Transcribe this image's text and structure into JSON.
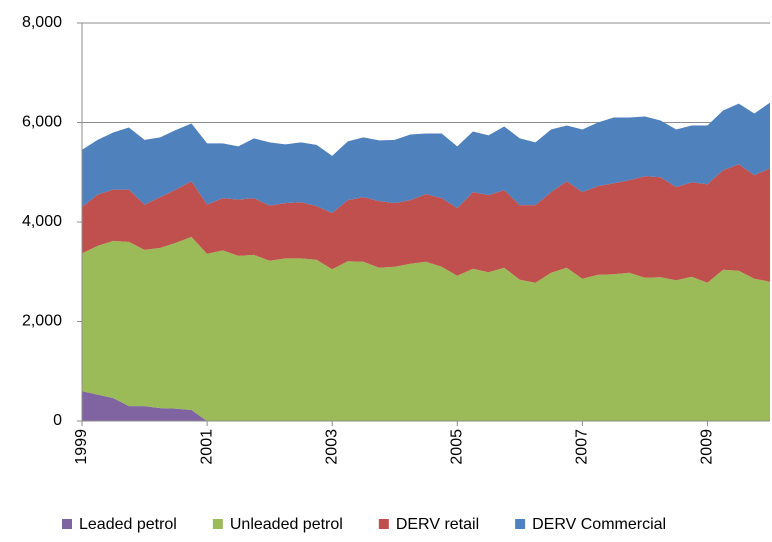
{
  "chart_data": {
    "type": "stacked-area",
    "categories": [
      "1999",
      null,
      null,
      null,
      null,
      null,
      null,
      null,
      "2001",
      null,
      null,
      null,
      null,
      null,
      null,
      null,
      "2003",
      null,
      null,
      null,
      null,
      null,
      null,
      null,
      "2005",
      null,
      null,
      null,
      null,
      null,
      null,
      null,
      "2007",
      null,
      null,
      null,
      null,
      null,
      null,
      null,
      "2009",
      null,
      null,
      null,
      null
    ],
    "series": [
      {
        "name": "Leaded petrol",
        "color": "#8064a2",
        "values": [
          600,
          530,
          460,
          300,
          300,
          260,
          250,
          220,
          0,
          0,
          0,
          0,
          0,
          0,
          0,
          0,
          0,
          0,
          0,
          0,
          0,
          0,
          0,
          0,
          0,
          0,
          0,
          0,
          0,
          0,
          0,
          0,
          0,
          0,
          0,
          0,
          0,
          0,
          0,
          0,
          0,
          0,
          0,
          0,
          0
        ]
      },
      {
        "name": "Unleaded petrol",
        "color": "#9bbb59",
        "values": [
          2770,
          2990,
          3160,
          3300,
          3140,
          3220,
          3330,
          3480,
          3360,
          3430,
          3320,
          3340,
          3220,
          3270,
          3270,
          3240,
          3050,
          3210,
          3200,
          3080,
          3100,
          3160,
          3200,
          3100,
          2920,
          3060,
          2990,
          3080,
          2840,
          2780,
          2980,
          3080,
          2860,
          2940,
          2950,
          2980,
          2880,
          2890,
          2830,
          2900,
          2780,
          3040,
          3020,
          2860,
          2800
        ]
      },
      {
        "name": "DERV retail",
        "color": "#c0504d",
        "values": [
          930,
          1030,
          1030,
          1050,
          910,
          1020,
          1070,
          1120,
          990,
          1050,
          1130,
          1140,
          1110,
          1110,
          1130,
          1080,
          1130,
          1230,
          1300,
          1340,
          1280,
          1280,
          1360,
          1380,
          1360,
          1540,
          1550,
          1560,
          1500,
          1560,
          1620,
          1740,
          1740,
          1780,
          1830,
          1860,
          2040,
          2010,
          1870,
          1900,
          1980,
          2000,
          2140,
          2080,
          2280
        ]
      },
      {
        "name": "DERV Commercial",
        "color": "#4f81bd",
        "values": [
          1150,
          1100,
          1150,
          1250,
          1300,
          1200,
          1200,
          1160,
          1230,
          1100,
          1070,
          1200,
          1270,
          1180,
          1200,
          1230,
          1150,
          1180,
          1200,
          1220,
          1270,
          1320,
          1220,
          1300,
          1240,
          1220,
          1200,
          1280,
          1340,
          1260,
          1260,
          1120,
          1260,
          1280,
          1320,
          1260,
          1200,
          1140,
          1160,
          1140,
          1180,
          1200,
          1220,
          1240,
          1320
        ]
      }
    ],
    "ylim": [
      0,
      8000
    ],
    "yticks": [
      0,
      {
        "value": 2000,
        "label": "2,000"
      },
      {
        "value": 4000,
        "label": "4,000"
      },
      {
        "value": 6000,
        "label": "6,000"
      },
      {
        "value": 8000,
        "label": "8,000"
      }
    ],
    "grid": true,
    "legend": "bottom"
  }
}
